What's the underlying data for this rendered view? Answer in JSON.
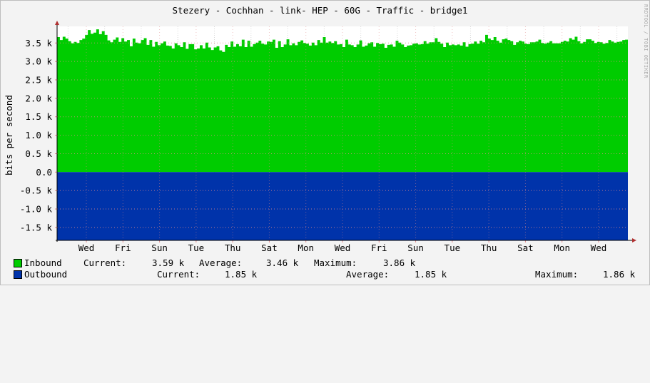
{
  "title": "Stezery - Cochhan - link- HEP - 60G - Traffic - bridge1",
  "watermark": "RRDTOOL / TOBI OETIKER",
  "colors": {
    "inbound": "#00CC00",
    "outbound": "#0033AA",
    "grid_major": "#E08A8A",
    "grid_minor": "#D8D8D8",
    "axis": "#000000",
    "arrow": "#B03030"
  },
  "legend": {
    "inbound": {
      "label": "Inbound",
      "current_label": "Current:",
      "current_value": "3.59 k",
      "average_label": "Average:",
      "average_value": "3.46 k",
      "maximum_label": "Maximum:",
      "maximum_value": "3.86 k"
    },
    "outbound": {
      "label": "Outbound",
      "current_label": "Current:",
      "current_value": "1.85 k",
      "average_label": "Average:",
      "average_value": "1.85 k",
      "maximum_label": "Maximum:",
      "maximum_value": "1.86 k"
    }
  },
  "chart_data": {
    "type": "area",
    "title": "Stezery - Cochhan - link- HEP - 60G - Traffic - bridge1",
    "ylabel": "bits per second",
    "xlabel": "",
    "ylim": [
      -1.85,
      3.95
    ],
    "yticks": [
      {
        "value": 3.5,
        "label": "3.5 k"
      },
      {
        "value": 3.0,
        "label": "3.0 k"
      },
      {
        "value": 2.5,
        "label": "2.5 k"
      },
      {
        "value": 2.0,
        "label": "2.0 k"
      },
      {
        "value": 1.5,
        "label": "1.5 k"
      },
      {
        "value": 1.0,
        "label": "1.0 k"
      },
      {
        "value": 0.5,
        "label": "0.5 k"
      },
      {
        "value": 0.0,
        "label": "0.0"
      },
      {
        "value": -0.5,
        "label": "-0.5 k"
      },
      {
        "value": -1.0,
        "label": "-1.0 k"
      },
      {
        "value": -1.5,
        "label": "-1.5 k"
      }
    ],
    "x_range": [
      0,
      15.6
    ],
    "xticks": [
      {
        "value": 0.8,
        "label": "Wed"
      },
      {
        "value": 1.8,
        "label": "Fri"
      },
      {
        "value": 2.8,
        "label": "Sun"
      },
      {
        "value": 3.8,
        "label": "Tue"
      },
      {
        "value": 4.8,
        "label": "Thu"
      },
      {
        "value": 5.8,
        "label": "Sat"
      },
      {
        "value": 6.8,
        "label": "Mon"
      },
      {
        "value": 7.8,
        "label": "Wed"
      },
      {
        "value": 8.8,
        "label": "Fri"
      },
      {
        "value": 9.8,
        "label": "Sun"
      },
      {
        "value": 10.8,
        "label": "Tue"
      },
      {
        "value": 11.8,
        "label": "Thu"
      },
      {
        "value": 12.8,
        "label": "Sat"
      },
      {
        "value": 13.8,
        "label": "Mon"
      },
      {
        "value": 14.8,
        "label": "Wed"
      }
    ],
    "grid": true,
    "units": "k",
    "series": [
      {
        "name": "Inbound",
        "color": "#00CC00",
        "values": [
          3.66,
          3.58,
          3.67,
          3.62,
          3.55,
          3.49,
          3.53,
          3.5,
          3.58,
          3.62,
          3.72,
          3.85,
          3.75,
          3.78,
          3.87,
          3.74,
          3.82,
          3.72,
          3.57,
          3.52,
          3.59,
          3.65,
          3.53,
          3.63,
          3.54,
          3.58,
          3.41,
          3.62,
          3.51,
          3.49,
          3.58,
          3.63,
          3.45,
          3.58,
          3.4,
          3.53,
          3.44,
          3.49,
          3.54,
          3.43,
          3.42,
          3.35,
          3.49,
          3.44,
          3.39,
          3.52,
          3.34,
          3.47,
          3.47,
          3.33,
          3.35,
          3.44,
          3.35,
          3.51,
          3.38,
          3.31,
          3.38,
          3.41,
          3.3,
          3.26,
          3.45,
          3.39,
          3.54,
          3.4,
          3.47,
          3.41,
          3.59,
          3.39,
          3.56,
          3.4,
          3.47,
          3.51,
          3.56,
          3.48,
          3.46,
          3.54,
          3.53,
          3.59,
          3.37,
          3.55,
          3.39,
          3.46,
          3.6,
          3.44,
          3.49,
          3.44,
          3.53,
          3.57,
          3.5,
          3.48,
          3.43,
          3.51,
          3.44,
          3.58,
          3.51,
          3.66,
          3.51,
          3.54,
          3.5,
          3.55,
          3.46,
          3.47,
          3.39,
          3.59,
          3.46,
          3.44,
          3.39,
          3.46,
          3.57,
          3.4,
          3.43,
          3.49,
          3.52,
          3.4,
          3.5,
          3.47,
          3.48,
          3.37,
          3.45,
          3.46,
          3.4,
          3.56,
          3.51,
          3.46,
          3.39,
          3.43,
          3.44,
          3.48,
          3.49,
          3.46,
          3.47,
          3.55,
          3.48,
          3.52,
          3.52,
          3.63,
          3.53,
          3.48,
          3.39,
          3.51,
          3.44,
          3.46,
          3.44,
          3.46,
          3.43,
          3.52,
          3.4,
          3.47,
          3.48,
          3.54,
          3.48,
          3.56,
          3.52,
          3.72,
          3.62,
          3.58,
          3.66,
          3.56,
          3.51,
          3.6,
          3.62,
          3.58,
          3.55,
          3.45,
          3.52,
          3.56,
          3.54,
          3.48,
          3.47,
          3.52,
          3.52,
          3.54,
          3.59,
          3.5,
          3.48,
          3.51,
          3.55,
          3.49,
          3.49,
          3.49,
          3.53,
          3.56,
          3.54,
          3.63,
          3.59,
          3.67,
          3.55,
          3.49,
          3.53,
          3.6,
          3.6,
          3.56,
          3.5,
          3.53,
          3.52,
          3.48,
          3.5,
          3.58,
          3.54,
          3.51,
          3.53,
          3.54,
          3.58,
          3.59
        ]
      },
      {
        "name": "Outbound",
        "color": "#0033AA",
        "values": [
          -1.85,
          -1.85,
          -1.85,
          -1.85,
          -1.85,
          -1.85,
          -1.85,
          -1.85,
          -1.85,
          -1.85,
          -1.85,
          -1.85,
          -1.85,
          -1.85,
          -1.85,
          -1.85,
          -1.85,
          -1.85,
          -1.85,
          -1.85,
          -1.85,
          -1.85,
          -1.85,
          -1.85,
          -1.85,
          -1.85,
          -1.85,
          -1.85,
          -1.85,
          -1.85,
          -1.85,
          -1.85,
          -1.85,
          -1.85,
          -1.85,
          -1.85,
          -1.85,
          -1.85,
          -1.85,
          -1.85,
          -1.85,
          -1.85,
          -1.85,
          -1.85,
          -1.85,
          -1.85,
          -1.85,
          -1.85,
          -1.85,
          -1.85,
          -1.85,
          -1.85,
          -1.85,
          -1.85,
          -1.85,
          -1.85,
          -1.85,
          -1.85,
          -1.85,
          -1.85,
          -1.85,
          -1.85,
          -1.85,
          -1.85,
          -1.85,
          -1.85,
          -1.85,
          -1.85,
          -1.85,
          -1.85,
          -1.85,
          -1.85,
          -1.85,
          -1.85,
          -1.85,
          -1.85,
          -1.85,
          -1.85,
          -1.85,
          -1.85,
          -1.85,
          -1.85,
          -1.85,
          -1.85,
          -1.85,
          -1.85,
          -1.85,
          -1.85,
          -1.85,
          -1.85,
          -1.85,
          -1.85,
          -1.85,
          -1.85,
          -1.85,
          -1.85,
          -1.85,
          -1.85,
          -1.85,
          -1.85,
          -1.85,
          -1.85,
          -1.85,
          -1.85,
          -1.85,
          -1.85,
          -1.85,
          -1.85,
          -1.85,
          -1.85,
          -1.85,
          -1.85,
          -1.85,
          -1.85,
          -1.85,
          -1.85,
          -1.85,
          -1.85,
          -1.85,
          -1.85,
          -1.85,
          -1.85,
          -1.85,
          -1.85,
          -1.85,
          -1.85,
          -1.85,
          -1.85,
          -1.85,
          -1.85,
          -1.85,
          -1.85,
          -1.85,
          -1.85,
          -1.85,
          -1.85,
          -1.85,
          -1.85,
          -1.85,
          -1.85,
          -1.85,
          -1.85,
          -1.85,
          -1.85,
          -1.85,
          -1.85,
          -1.85,
          -1.85,
          -1.85,
          -1.85,
          -1.85,
          -1.85,
          -1.85,
          -1.85,
          -1.85,
          -1.85,
          -1.85,
          -1.85,
          -1.85,
          -1.85,
          -1.85,
          -1.85,
          -1.85,
          -1.85,
          -1.85,
          -1.85,
          -1.85,
          -1.85,
          -1.85,
          -1.85,
          -1.85,
          -1.85,
          -1.85,
          -1.85,
          -1.85,
          -1.85,
          -1.85,
          -1.85,
          -1.85,
          -1.85,
          -1.85,
          -1.85,
          -1.85,
          -1.85,
          -1.85,
          -1.85,
          -1.85,
          -1.85,
          -1.85,
          -1.85,
          -1.85,
          -1.85,
          -1.85,
          -1.85,
          -1.85,
          -1.85,
          -1.85,
          -1.85,
          -1.85,
          -1.85,
          -1.85,
          -1.85,
          -1.85
        ]
      }
    ]
  }
}
